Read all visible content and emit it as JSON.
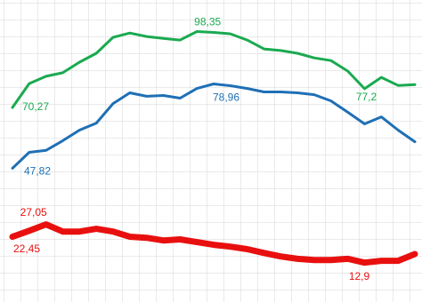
{
  "chart_data": {
    "type": "line",
    "categories": [
      null,
      null,
      null,
      null,
      null,
      null,
      null,
      null,
      null,
      null,
      null,
      null,
      null,
      null,
      null,
      null,
      null,
      null,
      null,
      null,
      null,
      null,
      null,
      null,
      null
    ],
    "ylim": [
      0,
      110
    ],
    "series": [
      {
        "color": "#1aaa50",
        "width": 3,
        "values": [
          70.27,
          79.1,
          81.8,
          83.1,
          87.0,
          90.3,
          96.2,
          97.8,
          96.5,
          95.8,
          95.2,
          98.35,
          98.0,
          97.5,
          95.2,
          91.9,
          91.3,
          90.3,
          88.6,
          87.6,
          83.7,
          77.2,
          81.4,
          78.4,
          78.7
        ],
        "value_labels": [
          "70,27",
          null,
          null,
          null,
          null,
          null,
          null,
          null,
          null,
          null,
          null,
          "98,35",
          null,
          null,
          null,
          null,
          null,
          null,
          null,
          null,
          null,
          "77,2",
          null,
          null,
          null
        ]
      },
      {
        "color": "#1f6fb5",
        "width": 3,
        "values": [
          47.82,
          53.7,
          54.4,
          58.0,
          61.9,
          64.5,
          71.7,
          75.7,
          74.4,
          74.7,
          73.7,
          77.3,
          78.96,
          78.3,
          77.3,
          76.0,
          76.0,
          75.7,
          75.0,
          72.7,
          68.5,
          64.2,
          66.8,
          61.9,
          57.6
        ],
        "value_labels": [
          "47,82",
          null,
          null,
          null,
          null,
          null,
          null,
          null,
          null,
          null,
          null,
          null,
          "78,96",
          null,
          null,
          null,
          null,
          null,
          null,
          null,
          null,
          null,
          null,
          null,
          null
        ]
      },
      {
        "color": "#e8100f",
        "width": 7,
        "values": [
          22.45,
          24.7,
          27.05,
          24.4,
          24.4,
          25.4,
          24.4,
          22.5,
          22.1,
          21.1,
          21.5,
          20.5,
          19.5,
          18.8,
          17.9,
          16.5,
          15.2,
          14.3,
          13.9,
          13.9,
          14.3,
          12.9,
          13.6,
          13.6,
          16.1
        ],
        "value_labels": [
          "22,45",
          null,
          "27,05",
          null,
          null,
          null,
          null,
          null,
          null,
          null,
          null,
          null,
          null,
          null,
          null,
          null,
          null,
          null,
          null,
          null,
          null,
          "12,9",
          null,
          null,
          null
        ]
      }
    ]
  }
}
